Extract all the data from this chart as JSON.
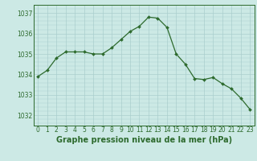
{
  "hours": [
    0,
    1,
    2,
    3,
    4,
    5,
    6,
    7,
    8,
    9,
    10,
    11,
    12,
    13,
    14,
    15,
    16,
    17,
    18,
    19,
    20,
    21,
    22,
    23
  ],
  "pressure": [
    1033.9,
    1034.2,
    1034.8,
    1035.1,
    1035.1,
    1035.1,
    1035.0,
    1035.0,
    1035.3,
    1035.7,
    1036.1,
    1036.35,
    1036.8,
    1036.75,
    1036.3,
    1035.0,
    1034.5,
    1033.8,
    1033.75,
    1033.85,
    1033.55,
    1033.3,
    1032.85,
    1032.3
  ],
  "line_color": "#2d6a2d",
  "marker_color": "#2d6a2d",
  "bg_color": "#cce9e5",
  "grid_color": "#aacece",
  "axis_color": "#2d6a2d",
  "label_color": "#2d6a2d",
  "bottom_bar_color": "#3a7a3a",
  "xlabel": "Graphe pression niveau de la mer (hPa)",
  "ylim": [
    1031.5,
    1037.4
  ],
  "yticks": [
    1032,
    1033,
    1034,
    1035,
    1036,
    1037
  ],
  "xticks": [
    0,
    1,
    2,
    3,
    4,
    5,
    6,
    7,
    8,
    9,
    10,
    11,
    12,
    13,
    14,
    15,
    16,
    17,
    18,
    19,
    20,
    21,
    22,
    23
  ],
  "tick_fontsize": 5.5,
  "label_fontsize": 7.0
}
